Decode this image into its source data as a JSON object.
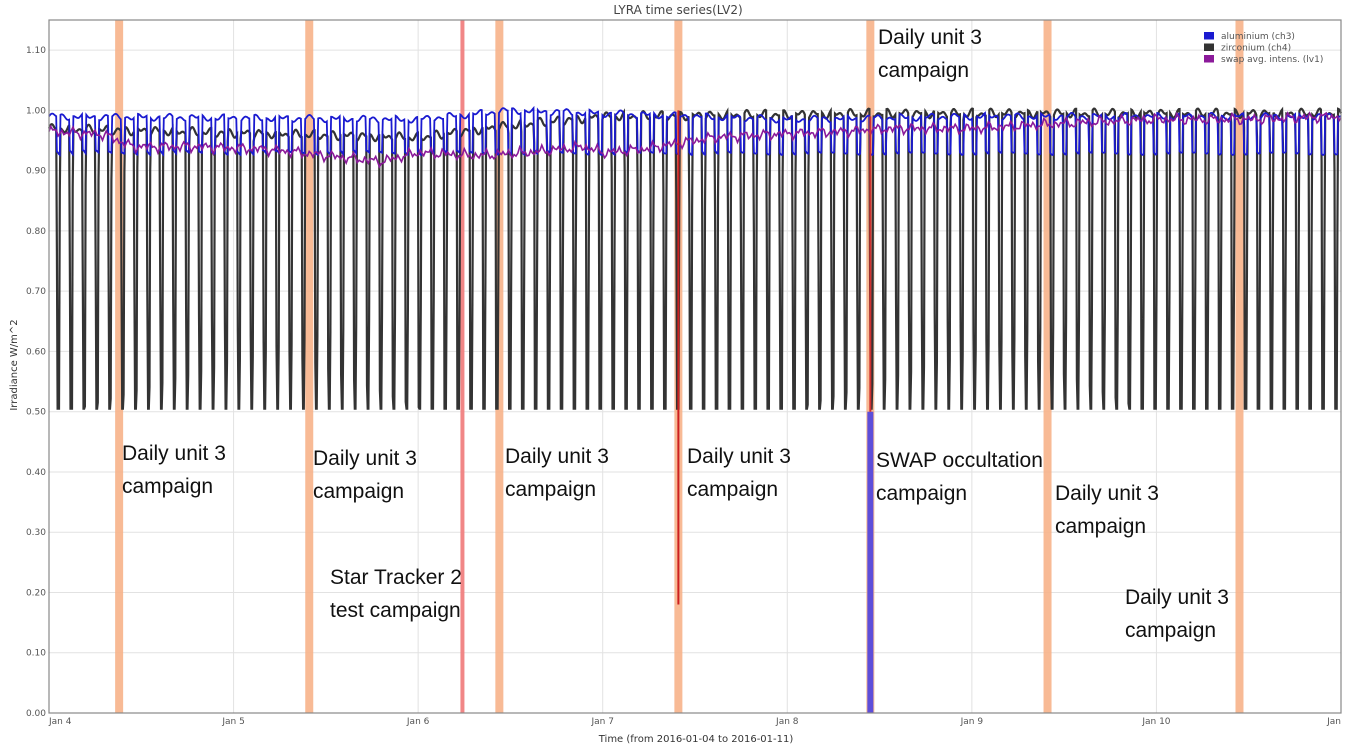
{
  "chart_data": {
    "type": "line",
    "title": "LYRA time series(LV2)",
    "xlabel": "Time (from 2016-01-04 to 2016-01-11)",
    "ylabel": "Irradiance W/m^2",
    "x_range": [
      "2016-01-04",
      "2016-01-11"
    ],
    "x_ticks": [
      {
        "date": "2016-01-04",
        "label": "Jan 4"
      },
      {
        "date": "2016-01-05",
        "label": "Jan 5"
      },
      {
        "date": "2016-01-06",
        "label": "Jan 6"
      },
      {
        "date": "2016-01-07",
        "label": "Jan 7"
      },
      {
        "date": "2016-01-08",
        "label": "Jan 8"
      },
      {
        "date": "2016-01-09",
        "label": "Jan 9"
      },
      {
        "date": "2016-01-10",
        "label": "Jan 10"
      },
      {
        "date": "2016-01-11",
        "label": "Jan"
      }
    ],
    "ylim": [
      0,
      1.15
    ],
    "y_ticks": [
      0.0,
      0.1,
      0.2,
      0.3,
      0.4,
      0.5,
      0.6,
      0.7,
      0.8,
      0.9,
      1.0,
      1.1
    ],
    "grid": true,
    "legend_position": "top-right",
    "series": [
      {
        "name": "aluminium (ch3)",
        "color": "#1a1ad0",
        "description": "oscillating between ~0.93 and ~0.99 with many dips",
        "low": 0.93,
        "high": [
          [
            0.0,
            0.99
          ],
          [
            2.0,
            0.985
          ],
          [
            2.5,
            1.0
          ],
          [
            4.0,
            0.985
          ],
          [
            5.0,
            0.99
          ],
          [
            7.0,
            0.99
          ]
        ],
        "spike": {
          "x": 4.45,
          "y": 0.02
        }
      },
      {
        "name": "zirconium (ch4)",
        "color": "#333333",
        "low": 0.505,
        "high": [
          [
            0.0,
            0.97
          ],
          [
            2.0,
            0.955
          ],
          [
            2.5,
            0.975
          ],
          [
            3.0,
            0.99
          ],
          [
            4.5,
            0.995
          ],
          [
            7.0,
            0.995
          ]
        ]
      },
      {
        "name": "swap avg. intens. (lv1)",
        "color": "#8b1a9a",
        "points": [
          [
            0.0,
            0.965
          ],
          [
            0.3,
            0.96
          ],
          [
            0.45,
            0.94
          ],
          [
            0.8,
            0.94
          ],
          [
            1.2,
            0.935
          ],
          [
            1.5,
            0.925
          ],
          [
            1.8,
            0.915
          ],
          [
            2.0,
            0.93
          ],
          [
            2.3,
            0.925
          ],
          [
            2.6,
            0.93
          ],
          [
            2.9,
            0.94
          ],
          [
            3.0,
            0.93
          ],
          [
            3.2,
            0.935
          ],
          [
            3.4,
            0.945
          ],
          [
            3.6,
            0.955
          ],
          [
            3.9,
            0.96
          ],
          [
            4.3,
            0.965
          ],
          [
            4.6,
            0.97
          ],
          [
            5.0,
            0.97
          ],
          [
            5.3,
            0.975
          ],
          [
            5.6,
            0.98
          ],
          [
            6.0,
            0.985
          ],
          [
            6.5,
            0.985
          ],
          [
            7.0,
            0.99
          ]
        ]
      }
    ],
    "campaigns": [
      {
        "type": "Daily unit 3",
        "x": 0.38,
        "color": "#f7b38a"
      },
      {
        "type": "Daily unit 3",
        "x": 1.41,
        "color": "#f7b38a"
      },
      {
        "type": "Star Tracker 2 test",
        "x": 2.24,
        "color": "#f08080"
      },
      {
        "type": "Daily unit 3",
        "x": 2.44,
        "color": "#f7b38a"
      },
      {
        "type": "Daily unit 3",
        "x": 3.41,
        "color": "#f7b38a"
      },
      {
        "type": "Daily unit 3",
        "x": 4.45,
        "color": "#f7b38a"
      },
      {
        "type": "Daily unit 3",
        "x": 5.41,
        "color": "#f7b38a"
      },
      {
        "type": "Daily unit 3",
        "x": 6.45,
        "color": "#f7b38a"
      }
    ],
    "annotations": [
      {
        "line1": "Daily unit 3",
        "line2": "campaign"
      },
      {
        "line1": "Daily unit 3",
        "line2": "campaign"
      },
      {
        "line1": "Star Tracker 2",
        "line2": "test campaign"
      },
      {
        "line1": "Daily unit 3",
        "line2": "campaign"
      },
      {
        "line1": "Daily unit 3",
        "line2": "campaign"
      },
      {
        "line1": "Daily unit 3",
        "line2": "campaign"
      },
      {
        "line1": "SWAP occultation",
        "line2": "campaign"
      },
      {
        "line1": "Daily unit 3",
        "line2": "campaign"
      },
      {
        "line1": "Daily unit 3",
        "line2": "campaign"
      }
    ],
    "swap_occultation_x": 4.45
  }
}
